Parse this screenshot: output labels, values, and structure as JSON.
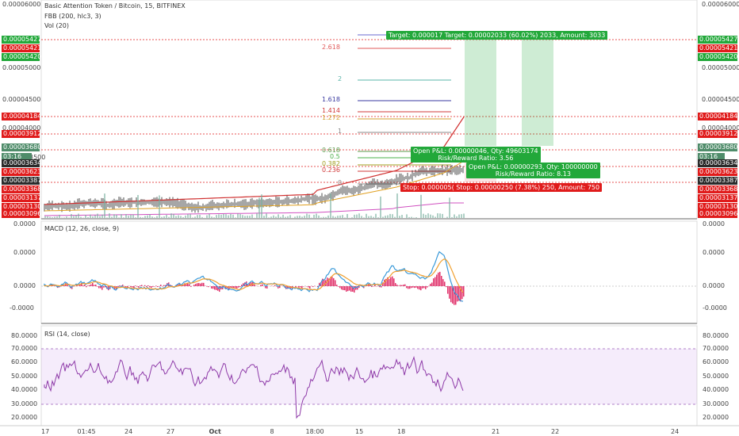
{
  "legend": {
    "title": "Basic Attention Token / Bitcoin, 15, BITFINEX",
    "indicator1": "FBB (200, hlc3, 3)",
    "indicator2": "Vol (20)",
    "macd": "MACD (12, 26, close, 9)",
    "rsi": "RSI (14, close)"
  },
  "price_axis": [
    "0.00006000",
    "0.00005000",
    "0.00004500",
    "0.00004000",
    "0.00003500"
  ],
  "price_axis_right": [
    "0.00006000",
    "0.00005000",
    "0.00004500",
    "0.00004000"
  ],
  "left_tags": [
    {
      "text": "0.00005427",
      "color": "#22a83a"
    },
    {
      "text": "0.00005421",
      "color": "#e01b1b"
    },
    {
      "text": "0.00005420",
      "color": "#22a83a"
    },
    {
      "text": "0.00004184",
      "color": "#e01b1b"
    },
    {
      "text": "0.00003912",
      "color": "#e01b1b"
    },
    {
      "text": "0.00003680",
      "color": "#4f8c6a"
    },
    {
      "text": "03:16",
      "color": "#4f8c6a"
    },
    {
      "text": "0.00003634",
      "color": "#2b2b2b"
    },
    {
      "text": "0.00003623",
      "color": "#e01b1b"
    },
    {
      "text": "0.00003387",
      "color": "#2b2b2b"
    },
    {
      "text": "0.00003368",
      "color": "#e01b1b"
    },
    {
      "text": "0.00003137",
      "color": "#e01b1b"
    },
    {
      "text": "0.00003130",
      "color": "#e01b1b"
    },
    {
      "text": "0.00003096",
      "color": "#e01b1b"
    }
  ],
  "right_tags": [
    {
      "text": "0.00005427",
      "color": "#22a83a"
    },
    {
      "text": "0.00005421",
      "color": "#e01b1b"
    },
    {
      "text": "0.00005420",
      "color": "#22a83a"
    },
    {
      "text": "0.00004184",
      "color": "#e01b1b"
    },
    {
      "text": "0.00003912",
      "color": "#e01b1b"
    },
    {
      "text": "0.00003680",
      "color": "#4f8c6a"
    },
    {
      "text": "03:16",
      "color": "#4f8c6a"
    },
    {
      "text": "0.00003634",
      "color": "#2b2b2b"
    },
    {
      "text": "0.00003623",
      "color": "#e01b1b"
    },
    {
      "text": "0.00003387",
      "color": "#2b2b2b"
    },
    {
      "text": "0.00003368",
      "color": "#e01b1b"
    },
    {
      "text": "0.00003137",
      "color": "#e01b1b"
    },
    {
      "text": "0.00003130",
      "color": "#e01b1b"
    },
    {
      "text": "0.00003096",
      "color": "#e01b1b"
    }
  ],
  "left_partial": "3500",
  "fib_levels": [
    {
      "label": "2.618",
      "color": "#e05a5a"
    },
    {
      "label": "2",
      "color": "#5ab4a8"
    },
    {
      "label": "1.618",
      "color": "#3a3aa0"
    },
    {
      "label": "1.414",
      "color": "#d03a3a"
    },
    {
      "label": "1.272",
      "color": "#d0a030"
    },
    {
      "label": "1",
      "color": "#888888"
    },
    {
      "label": "0.618",
      "color": "#5a9a4a"
    },
    {
      "label": "0.5",
      "color": "#4ab04a"
    },
    {
      "label": "0.382",
      "color": "#a0a020"
    },
    {
      "label": "0.236",
      "color": "#d03a3a"
    },
    {
      "label": "0",
      "color": "#888888"
    }
  ],
  "target_box": "Target: 0.000017  Target: 0.00002033 (60.02%) 2033, Amount: 3033",
  "pnl1": {
    "line1": "Open P&L: 0.00000046, Qty: 49603174",
    "line2": "Risk/Reward Ratio: 3.56"
  },
  "pnl2": {
    "line1": "Open P&L: 0.00000293, Qty: 100000000",
    "line2": "Risk/Reward Ratio: 8.13"
  },
  "stop_box": "Stop: 0.000005(  Stop: 0.00000250 (7.38%) 250, Amount: 750",
  "macd_axis": [
    "0.0000",
    "0.0000",
    "0.0000",
    "-0.0000"
  ],
  "rsi_axis": [
    "80.0000",
    "70.0000",
    "60.0000",
    "50.0000",
    "40.0000",
    "30.0000",
    "20.0000"
  ],
  "time_axis": [
    "17",
    "01:45",
    "24",
    "27",
    "Oct",
    "8",
    "18:00",
    "15",
    "18",
    "21",
    "22",
    "24"
  ],
  "colors": {
    "rsi": "#8e3aa8",
    "macd": "#3a9ad9",
    "signal": "#f0a030",
    "hist_pos": "#e0306a",
    "hist_neg": "#e0306a",
    "target": "#22a83a",
    "stop": "#e01b1b"
  }
}
